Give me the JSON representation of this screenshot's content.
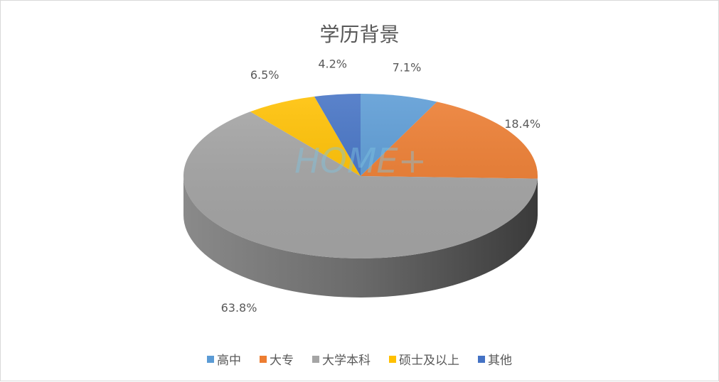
{
  "chart_data": {
    "type": "pie",
    "style": "3d",
    "title": "学历背景",
    "categories": [
      "高中",
      "大专",
      "大学本科",
      "硕士及以上",
      "其他"
    ],
    "values": [
      7.1,
      18.4,
      63.8,
      6.5,
      4.2
    ],
    "data_labels": [
      "7.1%",
      "18.4%",
      "63.8%",
      "6.5%",
      "4.2%"
    ],
    "colors": [
      "#5b9bd5",
      "#ed7d31",
      "#a5a5a5",
      "#ffc000",
      "#4472c4"
    ],
    "legend": "bottom",
    "watermark": "HOME+"
  }
}
